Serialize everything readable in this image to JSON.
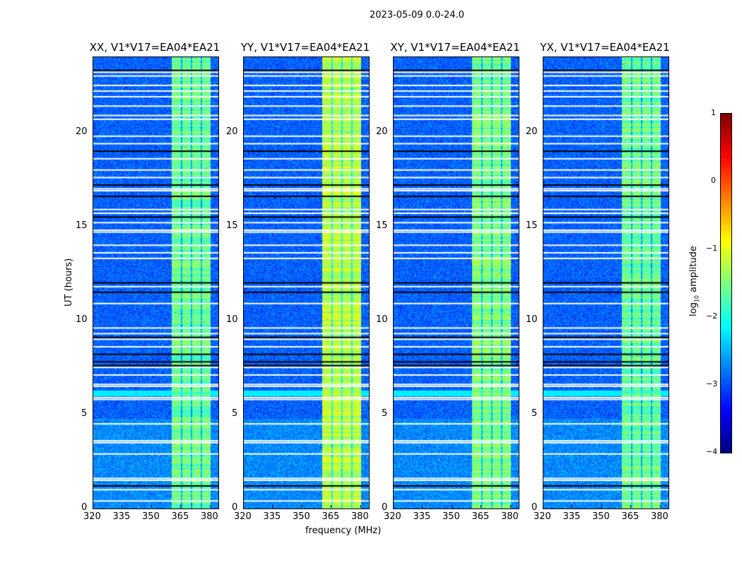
{
  "chart_data": {
    "type": "heatmap",
    "title": "2023-05-09 0.0-24.0",
    "xlabel": "frequency (MHz)",
    "ylabel": "UT (hours)",
    "colorbar_label": "log10 amplitude",
    "colorbar_label_parts": {
      "pre": "log",
      "sub": "10",
      "post": " amplitude"
    },
    "colormap": "jet",
    "clim": [
      -4,
      1
    ],
    "colorbar_ticks": [
      "1",
      "0",
      "−1",
      "−2",
      "−3",
      "−4"
    ],
    "colorbar_tick_values": [
      1,
      0,
      -1,
      -2,
      -3,
      -4
    ],
    "xlim": [
      320,
      384
    ],
    "ylim": [
      0,
      24
    ],
    "xticks": [
      320,
      335,
      350,
      365,
      380
    ],
    "yticks": [
      0,
      5,
      10,
      15,
      20
    ],
    "panels": [
      {
        "title": "XX, V1*V17=EA04*EA21",
        "band_level": -1.6
      },
      {
        "title": "YY, V1*V17=EA04*EA21",
        "band_level": -1.2
      },
      {
        "title": "XY, V1*V17=EA04*EA21",
        "band_level": -1.5
      },
      {
        "title": "YX, V1*V17=EA04*EA21",
        "band_level": -1.6
      }
    ],
    "background_level": -2.9,
    "band_mhz": [
      360,
      380
    ],
    "band_gaps_mhz": [
      365,
      370,
      375
    ],
    "broadband_hours": [
      [
        6.0,
        6.3
      ]
    ],
    "flagged_hours": [
      23.2,
      23.0,
      22.5,
      22.2,
      21.9,
      21.4,
      20.9,
      20.7,
      19.8,
      19.4,
      18.6,
      18.0,
      17.6,
      17.0,
      16.9,
      15.9,
      15.7,
      15.2,
      14.8,
      14.7,
      14.0,
      13.6,
      13.3,
      11.8,
      10.9,
      9.6,
      9.3,
      9.0,
      8.6,
      7.5,
      7.1,
      6.6,
      6.5,
      5.9,
      5.8,
      4.5,
      3.6,
      3.5,
      2.9,
      1.6,
      1.5,
      1.0,
      0.4
    ],
    "low_hours": [
      23.3,
      19.0,
      17.2,
      16.6,
      15.5,
      12.0,
      11.5,
      9.1,
      8.2,
      7.8,
      7.6,
      1.2
    ]
  }
}
